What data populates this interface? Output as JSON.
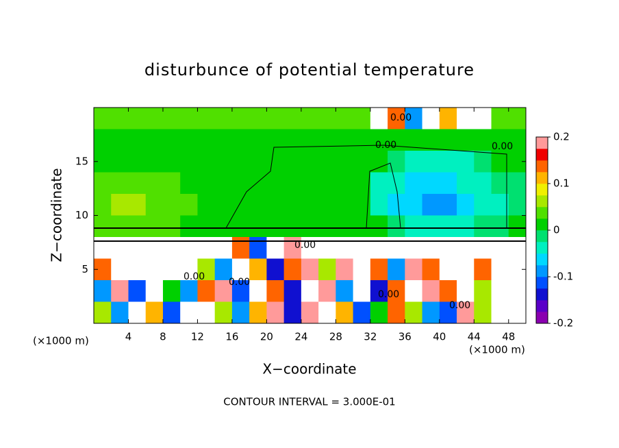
{
  "chart_data": {
    "type": "contour",
    "title": "disturbunce of potential temperature",
    "xlabel": "X−coordinate",
    "ylabel": "Z−coordinate",
    "xunit": "(×1000 m)",
    "note": "CONTOUR INTERVAL = 3.000E-01",
    "contour_label": "0.00",
    "xlim": [
      0,
      50
    ],
    "ylim": [
      0,
      20
    ],
    "xticks": [
      4,
      8,
      12,
      16,
      20,
      24,
      28,
      32,
      36,
      40,
      44,
      48
    ],
    "yticks": [
      5,
      10,
      15
    ],
    "x": [
      1,
      3,
      5,
      7,
      9,
      11,
      13,
      15,
      17,
      19,
      21,
      23,
      25,
      27,
      29,
      31,
      33,
      35,
      37,
      39,
      41,
      43,
      45,
      47,
      49
    ],
    "y": [
      19,
      17,
      15,
      13,
      11,
      9,
      7,
      5,
      3,
      1
    ],
    "z": [
      [
        0.03,
        0.03,
        0.03,
        0.03,
        0.03,
        0.03,
        0.03,
        0.03,
        0.03,
        0.03,
        0.03,
        0.03,
        0.03,
        0.03,
        0.03,
        0.03,
        0.3,
        0.15,
        -0.1,
        0.3,
        0.1,
        -0.3,
        0.3,
        0.03,
        0.03
      ],
      [
        0.02,
        0.02,
        0.02,
        0.02,
        0.02,
        0.02,
        0.02,
        0.02,
        0.02,
        0.02,
        0.02,
        0.02,
        0.02,
        0.02,
        0.02,
        0.02,
        0.02,
        0.02,
        0.02,
        0.02,
        0.02,
        0.02,
        0,
        0,
        0
      ],
      [
        0.02,
        0.02,
        0.02,
        0.02,
        0.02,
        0.02,
        0.02,
        0.02,
        0.01,
        0.01,
        0.01,
        0.01,
        0.01,
        0.01,
        0.01,
        0.01,
        0.01,
        -0.02,
        -0.04,
        -0.05,
        -0.04,
        -0.03,
        -0.02,
        0,
        0
      ],
      [
        0.03,
        0.04,
        0.04,
        0.03,
        0.03,
        0.02,
        0.02,
        0.02,
        0.01,
        0.01,
        0.01,
        0,
        0,
        0.01,
        0,
        0,
        -0.03,
        -0.05,
        -0.06,
        -0.07,
        -0.06,
        -0.05,
        -0.03,
        -0.02,
        -0.01
      ],
      [
        0.04,
        0.05,
        0.05,
        0.04,
        0.04,
        0.03,
        0.02,
        0.02,
        0.01,
        0.01,
        0.02,
        0.01,
        0,
        0.01,
        0.01,
        0,
        -0.04,
        -0.06,
        -0.07,
        -0.08,
        -0.09,
        -0.06,
        -0.04,
        -0.03,
        -0.02
      ],
      [
        0.03,
        0.03,
        0.04,
        0.03,
        0.03,
        0.02,
        0.02,
        0.02,
        0.01,
        0,
        0,
        0,
        0.01,
        0,
        0,
        0,
        0.01,
        -0.02,
        -0.03,
        -0.04,
        -0.05,
        -0.04,
        -0.02,
        -0.01,
        0
      ],
      [
        0.3,
        0.3,
        0.3,
        0.3,
        0.3,
        0.3,
        0.3,
        0.3,
        0.15,
        -0.12,
        0.3,
        0.2,
        0.3,
        0.3,
        0.3,
        0.3,
        0.3,
        0.3,
        0.3,
        0.3,
        0.3,
        0.3,
        0.3,
        0.3,
        0.3
      ],
      [
        0.15,
        0.3,
        0.3,
        -0.3,
        0.3,
        0.3,
        0.05,
        -0.1,
        0.3,
        0.1,
        -0.15,
        0.15,
        0.18,
        0.05,
        0.18,
        0.3,
        0.15,
        -0.1,
        0.2,
        0.15,
        0.3,
        0.3,
        0.15,
        0.3,
        0.3
      ],
      [
        -0.08,
        0.2,
        -0.12,
        0.3,
        0,
        -0.1,
        0.15,
        0.18,
        -0.12,
        -0.3,
        0.15,
        -0.14,
        0.3,
        0.18,
        -0.1,
        0.3,
        -0.15,
        0.15,
        -0.3,
        0.18,
        0.15,
        0.3,
        0.05,
        0.3,
        -0.3
      ],
      [
        0.05,
        -0.1,
        0.3,
        0.12,
        -0.12,
        0.3,
        0.3,
        0.05,
        -0.08,
        0.1,
        0.18,
        -0.13,
        0.2,
        0.3,
        0.1,
        -0.12,
        0,
        0.15,
        0.05,
        -0.1,
        -0.12,
        0.18,
        0.05,
        0.3,
        0.3
      ]
    ],
    "clim": [
      -0.2,
      0.2
    ],
    "cticks": [
      -0.2,
      -0.1,
      0,
      0.1,
      0.2
    ],
    "colormap": [
      "#8a00b0",
      "#5a00c8",
      "#1010d0",
      "#0050ff",
      "#0098ff",
      "#00d8ff",
      "#00f0c0",
      "#00e070",
      "#00d000",
      "#50e000",
      "#a8e800",
      "#f0f000",
      "#ffb400",
      "#ff6400",
      "#f00000",
      "#ff9a9a"
    ],
    "out_of_range_color": "#ffffff"
  }
}
